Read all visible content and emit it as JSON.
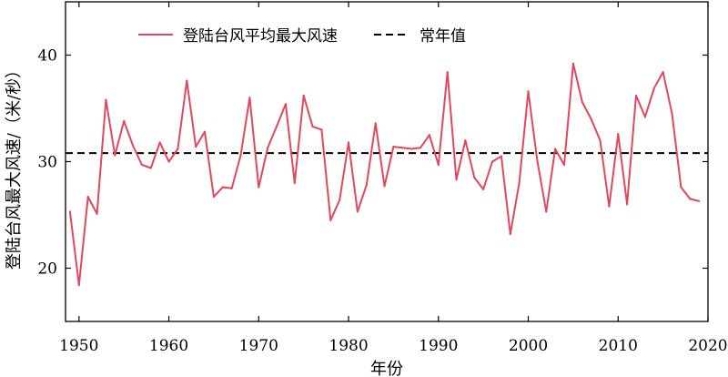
{
  "chart_data": {
    "type": "line",
    "xlabel": "年份",
    "ylabel": "登陆台风最大风速/（米/秒）",
    "xlim": [
      1948.5,
      2020
    ],
    "ylim": [
      15,
      45
    ],
    "xticks": [
      1950,
      1960,
      1970,
      1980,
      1990,
      2000,
      2010,
      2020
    ],
    "yticks": [
      20,
      30,
      40
    ],
    "legend_position": "top",
    "grid": false,
    "series": [
      {
        "name": "登陆台风平均最大风速",
        "style": "solid",
        "color": "#e0485e",
        "x": [
          1949,
          1950,
          1951,
          1952,
          1953,
          1954,
          1955,
          1956,
          1957,
          1958,
          1959,
          1960,
          1961,
          1962,
          1963,
          1964,
          1965,
          1966,
          1967,
          1968,
          1969,
          1970,
          1971,
          1972,
          1973,
          1974,
          1975,
          1976,
          1977,
          1978,
          1979,
          1980,
          1981,
          1982,
          1983,
          1984,
          1985,
          1986,
          1987,
          1988,
          1989,
          1990,
          1991,
          1992,
          1993,
          1994,
          1995,
          1996,
          1997,
          1998,
          1999,
          2000,
          2001,
          2002,
          2003,
          2004,
          2005,
          2006,
          2007,
          2008,
          2009,
          2010,
          2011,
          2012,
          2013,
          2014,
          2015,
          2016,
          2017,
          2018,
          2019
        ],
        "values": [
          25.3,
          18.4,
          26.7,
          25.1,
          35.8,
          30.6,
          33.8,
          31.5,
          29.7,
          29.4,
          31.8,
          30.0,
          31.2,
          37.6,
          31.4,
          32.8,
          26.7,
          27.6,
          27.5,
          30.6,
          36.0,
          27.6,
          31.3,
          33.3,
          35.4,
          28.0,
          36.2,
          33.3,
          33.0,
          24.5,
          26.4,
          31.8,
          25.3,
          27.8,
          33.6,
          27.7,
          31.4,
          31.3,
          31.2,
          31.3,
          32.5,
          29.7,
          38.4,
          28.3,
          32.0,
          28.5,
          27.4,
          30.0,
          30.5,
          23.2,
          28.0,
          36.6,
          30.1,
          25.3,
          31.2,
          29.7,
          39.2,
          35.6,
          34.0,
          32.0,
          25.8,
          32.6,
          26.0,
          36.2,
          34.2,
          36.9,
          38.4,
          34.5,
          27.6,
          26.5,
          26.3
        ]
      },
      {
        "name": "常年值",
        "style": "dashed",
        "color": "#000000",
        "value": 30.8
      }
    ]
  }
}
